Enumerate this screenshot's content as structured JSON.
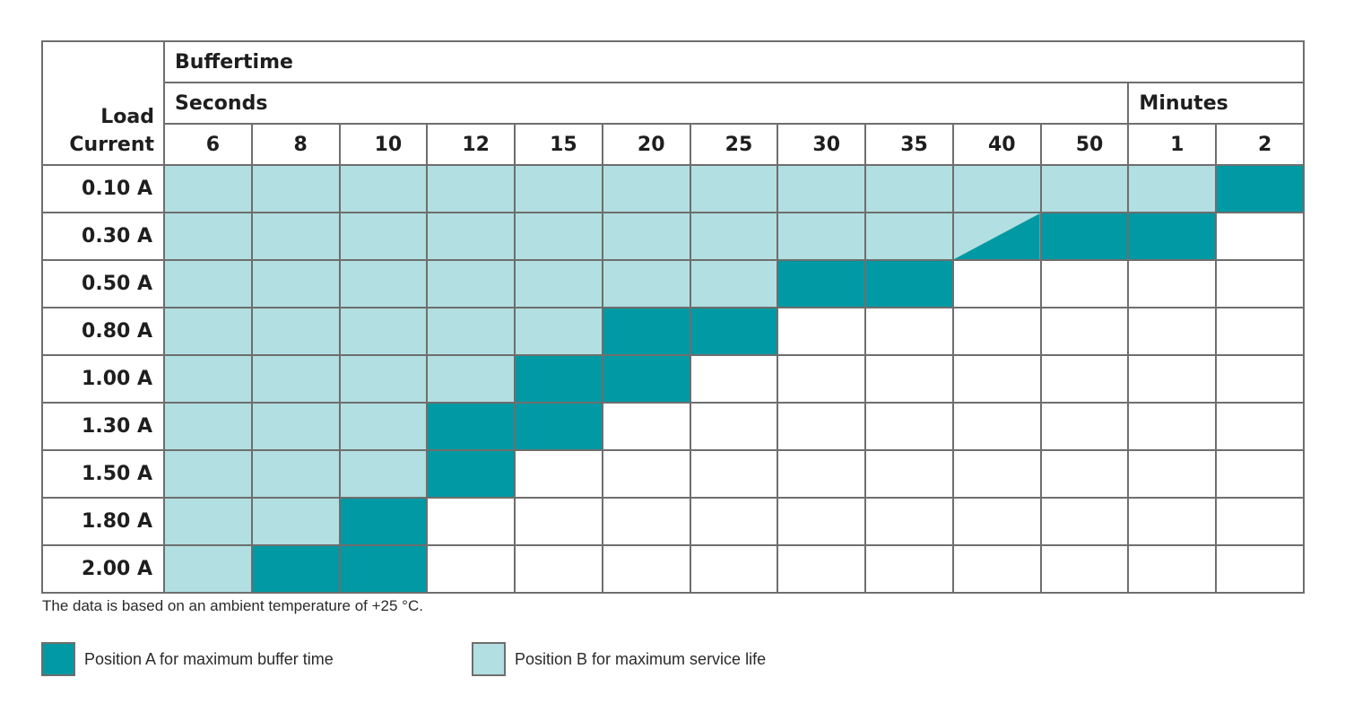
{
  "chart_data": {
    "type": "table",
    "header": {
      "load_current": "Load\nCurrent",
      "buffertime": "Buffertime",
      "seconds": "Seconds",
      "minutes": "Minutes"
    },
    "columns": [
      "6",
      "8",
      "10",
      "12",
      "15",
      "20",
      "25",
      "30",
      "35",
      "40",
      "50",
      "1",
      "2"
    ],
    "rows": [
      {
        "label": "0.10 A",
        "cells": [
          "B",
          "B",
          "B",
          "B",
          "B",
          "B",
          "B",
          "B",
          "B",
          "B",
          "B",
          "B",
          "A"
        ]
      },
      {
        "label": "0.30 A",
        "cells": [
          "B",
          "B",
          "B",
          "B",
          "B",
          "B",
          "B",
          "B",
          "B",
          "BA",
          "A",
          "A",
          ""
        ]
      },
      {
        "label": "0.50 A",
        "cells": [
          "B",
          "B",
          "B",
          "B",
          "B",
          "B",
          "B",
          "A",
          "A",
          "",
          "",
          "",
          ""
        ]
      },
      {
        "label": "0.80 A",
        "cells": [
          "B",
          "B",
          "B",
          "B",
          "B",
          "A",
          "A",
          "",
          "",
          "",
          "",
          "",
          ""
        ]
      },
      {
        "label": "1.00 A",
        "cells": [
          "B",
          "B",
          "B",
          "B",
          "A",
          "A",
          "",
          "",
          "",
          "",
          "",
          "",
          ""
        ]
      },
      {
        "label": "1.30 A",
        "cells": [
          "B",
          "B",
          "B",
          "A",
          "A",
          "",
          "",
          "",
          "",
          "",
          "",
          "",
          ""
        ]
      },
      {
        "label": "1.50 A",
        "cells": [
          "B",
          "B",
          "B",
          "A",
          "",
          "",
          "",
          "",
          "",
          "",
          "",
          "",
          ""
        ]
      },
      {
        "label": "1.80 A",
        "cells": [
          "B",
          "B",
          "A",
          "",
          "",
          "",
          "",
          "",
          "",
          "",
          "",
          "",
          ""
        ]
      },
      {
        "label": "2.00 A",
        "cells": [
          "B",
          "A",
          "A",
          "",
          "",
          "",
          "",
          "",
          "",
          "",
          "",
          "",
          ""
        ]
      }
    ],
    "note": "The data is based on an ambient temperature of +25 °C.",
    "legend": [
      {
        "key": "A",
        "label": "Position A for maximum buffer time",
        "color": "#0199a3"
      },
      {
        "key": "B",
        "label": "Position B for maximum service life",
        "color": "#b2dfe1"
      }
    ]
  }
}
